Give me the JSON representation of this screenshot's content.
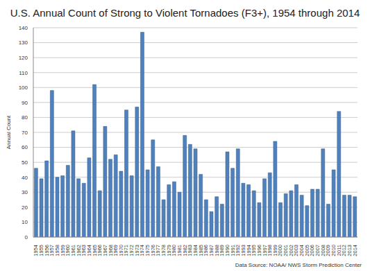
{
  "chart_data": {
    "type": "bar",
    "title": "U.S. Annual Count of Strong to Violent Tornadoes (F3+), 1954 through 2014",
    "ylabel": "Annual Count",
    "annotation": "Data Source: NOAA/ NWS Storm Prediction Center",
    "categories": [
      "1954",
      "1955",
      "1956",
      "1957",
      "1958",
      "1959",
      "1960",
      "1961",
      "1962",
      "1963",
      "1964",
      "1965",
      "1966",
      "1967",
      "1968",
      "1969",
      "1970",
      "1971",
      "1972",
      "1973",
      "1974",
      "1975",
      "1976",
      "1977",
      "1978",
      "1979",
      "1980",
      "1981",
      "1982",
      "1983",
      "1984",
      "1985",
      "1986",
      "1987",
      "1988",
      "1989",
      "1990",
      "1991",
      "1992",
      "1993",
      "1994",
      "1995",
      "1996",
      "1997",
      "1998",
      "1999",
      "2000",
      "2001",
      "2002",
      "2003",
      "2004",
      "2005",
      "2006",
      "2007",
      "2008",
      "2009",
      "2010",
      "2011",
      "2012",
      "2013",
      "2014"
    ],
    "values": [
      46,
      39,
      51,
      98,
      40,
      41,
      48,
      71,
      39,
      36,
      53,
      102,
      31,
      74,
      52,
      55,
      44,
      85,
      41,
      87,
      137,
      45,
      65,
      47,
      25,
      35,
      37,
      30,
      68,
      62,
      59,
      42,
      25,
      17,
      27,
      22,
      57,
      46,
      59,
      36,
      35,
      31,
      23,
      39,
      43,
      64,
      23,
      29,
      31,
      35,
      28,
      21,
      32,
      32,
      59,
      22,
      45,
      84,
      28,
      28,
      27
    ],
    "color": "#4f81bd",
    "ylim": [
      0,
      140
    ],
    "yticks": [
      0,
      10,
      20,
      30,
      40,
      50,
      60,
      70,
      80,
      90,
      100,
      110,
      120,
      130,
      140
    ],
    "grid": true
  }
}
